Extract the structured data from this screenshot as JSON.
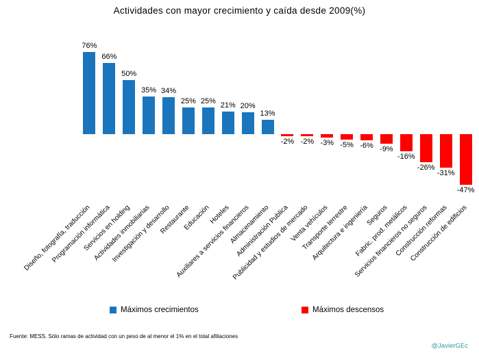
{
  "title": "Actividades con mayor crecimiento y caída desde 2009(%)",
  "chart_data": {
    "type": "bar",
    "title": "Actividades con mayor crecimiento y caída desde 2009(%)",
    "categories": [
      "Diseño, fotografía, traducción",
      "Programación informática",
      "Servicios en holding",
      "Actividades inmobiliarias",
      "Investigación y desarrollo",
      "Restaurante",
      "Educación",
      "Hoteles",
      "Auxiliares a servicios financieros",
      "Almacenamiento",
      "Administración Publica",
      "Publicidad y estudios de mercado",
      "Venta vehículos",
      "Transporte terrestre",
      "Arquitectura e ingeniería",
      "Seguros",
      "Fabric. prod. metálicos",
      "Servicios financieros no seguros",
      "Construcción reformas",
      "Construcción de edificios"
    ],
    "values": [
      76,
      66,
      50,
      35,
      34,
      25,
      25,
      21,
      20,
      13,
      -2,
      -2,
      -3,
      -5,
      -6,
      -9,
      -16,
      -26,
      -31,
      -47
    ],
    "value_labels": [
      "76%",
      "66%",
      "50%",
      "35%",
      "34%",
      "25%",
      "25%",
      "21%",
      "20%",
      "13%",
      "-2%",
      "-2%",
      "-3%",
      "-5%",
      "-6%",
      "-9%",
      "-16%",
      "-26%",
      "-31%",
      "-47%"
    ],
    "colors": {
      "positive": "#1B75BC",
      "negative": "#FF0000"
    },
    "ylim": [
      -50,
      80
    ],
    "grid": false,
    "legend_position": "bottom",
    "xlabel": "",
    "ylabel": ""
  },
  "legend": [
    {
      "label": "Máximos crecimientos",
      "color": "#1B75BC"
    },
    {
      "label": "Máximos descensos",
      "color": "#FF0000"
    }
  ],
  "footer": {
    "source": "Fuente: MESS. Sólo ramas de actividad con un peso de al menor el 1% en el total afiliaciones"
  },
  "watermark": {
    "text": "@JavierGEc",
    "color": "#2E9E9E"
  }
}
